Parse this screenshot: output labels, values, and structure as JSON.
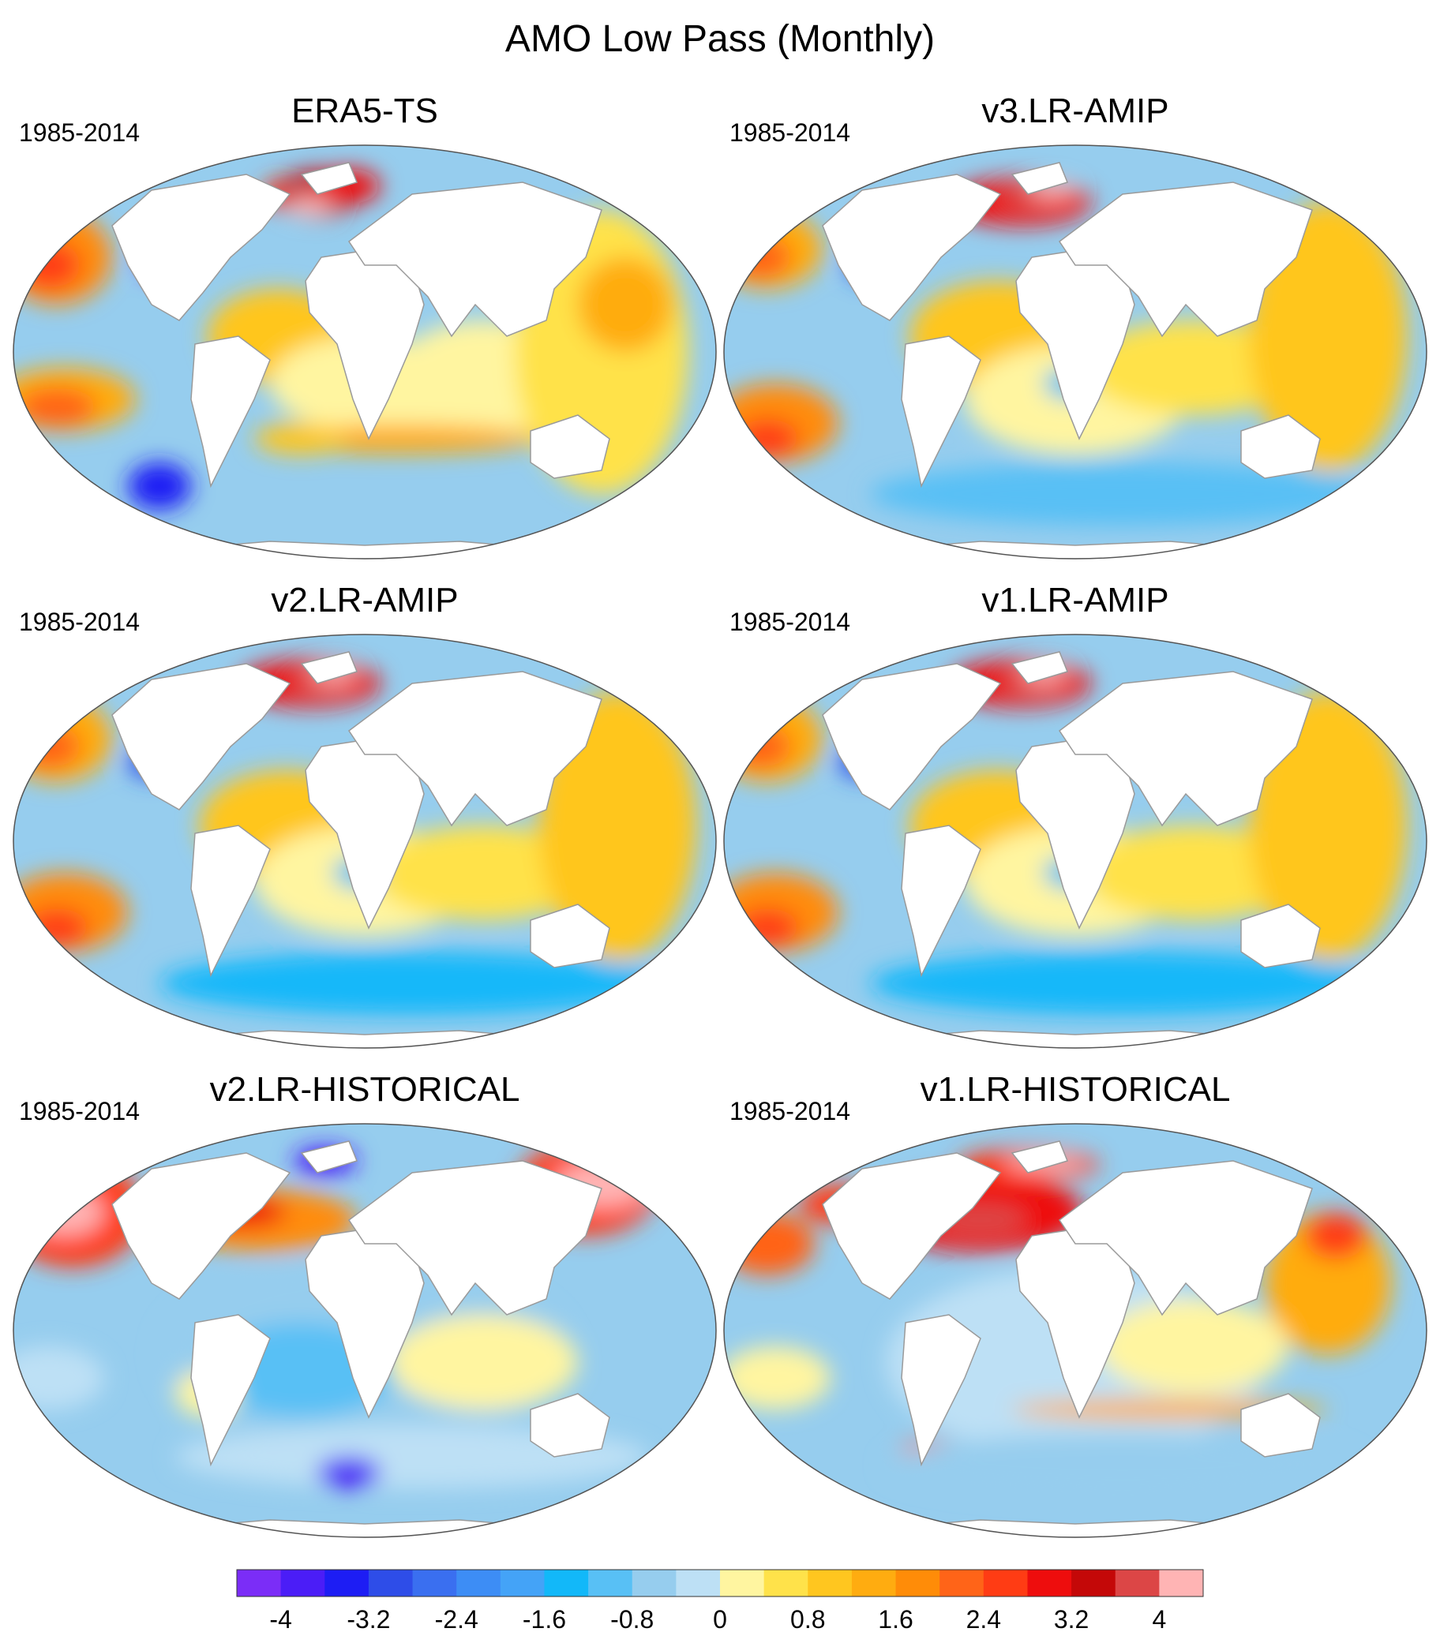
{
  "title": "AMO Low Pass (Monthly)",
  "panels": [
    {
      "title": "ERA5-TS",
      "period": "1985-2014"
    },
    {
      "title": "v3.LR-AMIP",
      "period": "1985-2014"
    },
    {
      "title": "v2.LR-AMIP",
      "period": "1985-2014"
    },
    {
      "title": "v1.LR-AMIP",
      "period": "1985-2014"
    },
    {
      "title": "v2.LR-HISTORICAL",
      "period": "1985-2014"
    },
    {
      "title": "v1.LR-HISTORICAL",
      "period": "1985-2014"
    }
  ],
  "colorbar": {
    "colors": [
      "#7b2df7",
      "#4b1df7",
      "#1d1df4",
      "#2e4de8",
      "#3a6ff0",
      "#3d8df5",
      "#44a3f7",
      "#12b8f9",
      "#58c0f5",
      "#96cdee",
      "#bde0f5",
      "#fff5a0",
      "#ffe24a",
      "#ffc61f",
      "#ffac10",
      "#ff8c08",
      "#ff6418",
      "#ff3c14",
      "#ee0d0d",
      "#c40808",
      "#dc4646",
      "#ffb4b4"
    ],
    "tick_labels": [
      "-4",
      "-3.2",
      "-2.4",
      "-1.6",
      "-0.8",
      "0",
      "0.8",
      "1.6",
      "2.4",
      "3.2",
      "4"
    ],
    "tick_values": [
      -4,
      -3.2,
      -2.4,
      -1.6,
      -0.8,
      0,
      0.8,
      1.6,
      2.4,
      3.2,
      4
    ],
    "levels_min": -4.4,
    "levels_step": 0.4
  }
}
